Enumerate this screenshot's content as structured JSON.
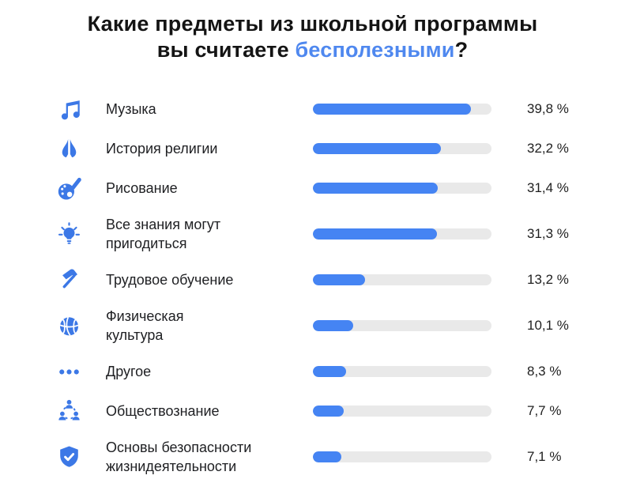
{
  "title": {
    "line1": "Какие предметы из школьной программы",
    "line2_prefix": "вы считаете ",
    "highlight": "бесполезными",
    "suffix": "?"
  },
  "colors": {
    "accent": "#4f88ef",
    "bar_fill": "#4584f3",
    "bar_track": "#e9e9e9",
    "icon_blue": "#3c78e6",
    "text": "#1d1d1f"
  },
  "chart_data": {
    "type": "bar",
    "orientation": "horizontal",
    "title": "Какие предметы из школьной программы вы считаете бесполезными?",
    "categories": [
      "Музыка",
      "История религии",
      "Рисование",
      "Все знания могут пригодиться",
      "Трудовое обучение",
      "Физическая культура",
      "Другое",
      "Обществознание",
      "Основы безопасности жизнидеятельности"
    ],
    "values": [
      39.8,
      32.2,
      31.4,
      31.3,
      13.2,
      10.1,
      8.3,
      7.7,
      7.1
    ],
    "value_labels": [
      "39,8 %",
      "32,2 %",
      "31,4 %",
      "31,3 %",
      "13,2 %",
      "10,1 %",
      "8,3 %",
      "7,7 %",
      "7,1 %"
    ],
    "unit": "%",
    "xlim": [
      0,
      45
    ],
    "grid": false,
    "legend": false
  },
  "rows": [
    {
      "icon": "music-note-icon",
      "label": "Музыка",
      "value": 39.8,
      "value_label": "39,8 %"
    },
    {
      "icon": "praying-hands-icon",
      "label": "История религии",
      "value": 32.2,
      "value_label": "32,2 %"
    },
    {
      "icon": "palette-icon",
      "label": "Рисование",
      "value": 31.4,
      "value_label": "31,4 %"
    },
    {
      "icon": "lightbulb-icon",
      "label": "Все знания могут\nпригодиться",
      "value": 31.3,
      "value_label": "31,3 %"
    },
    {
      "icon": "hammer-icon",
      "label": "Трудовое обучение",
      "value": 13.2,
      "value_label": "13,2 %"
    },
    {
      "icon": "basketball-icon",
      "label": "Физическая\nкультура",
      "value": 10.1,
      "value_label": "10,1 %"
    },
    {
      "icon": "ellipsis-icon",
      "label": "Другое",
      "value": 8.3,
      "value_label": "8,3 %"
    },
    {
      "icon": "people-network-icon",
      "label": "Обществознание",
      "value": 7.7,
      "value_label": "7,7 %"
    },
    {
      "icon": "shield-check-icon",
      "label": "Основы безопасности\nжизнидеятельности",
      "value": 7.1,
      "value_label": "7,1 %"
    }
  ]
}
